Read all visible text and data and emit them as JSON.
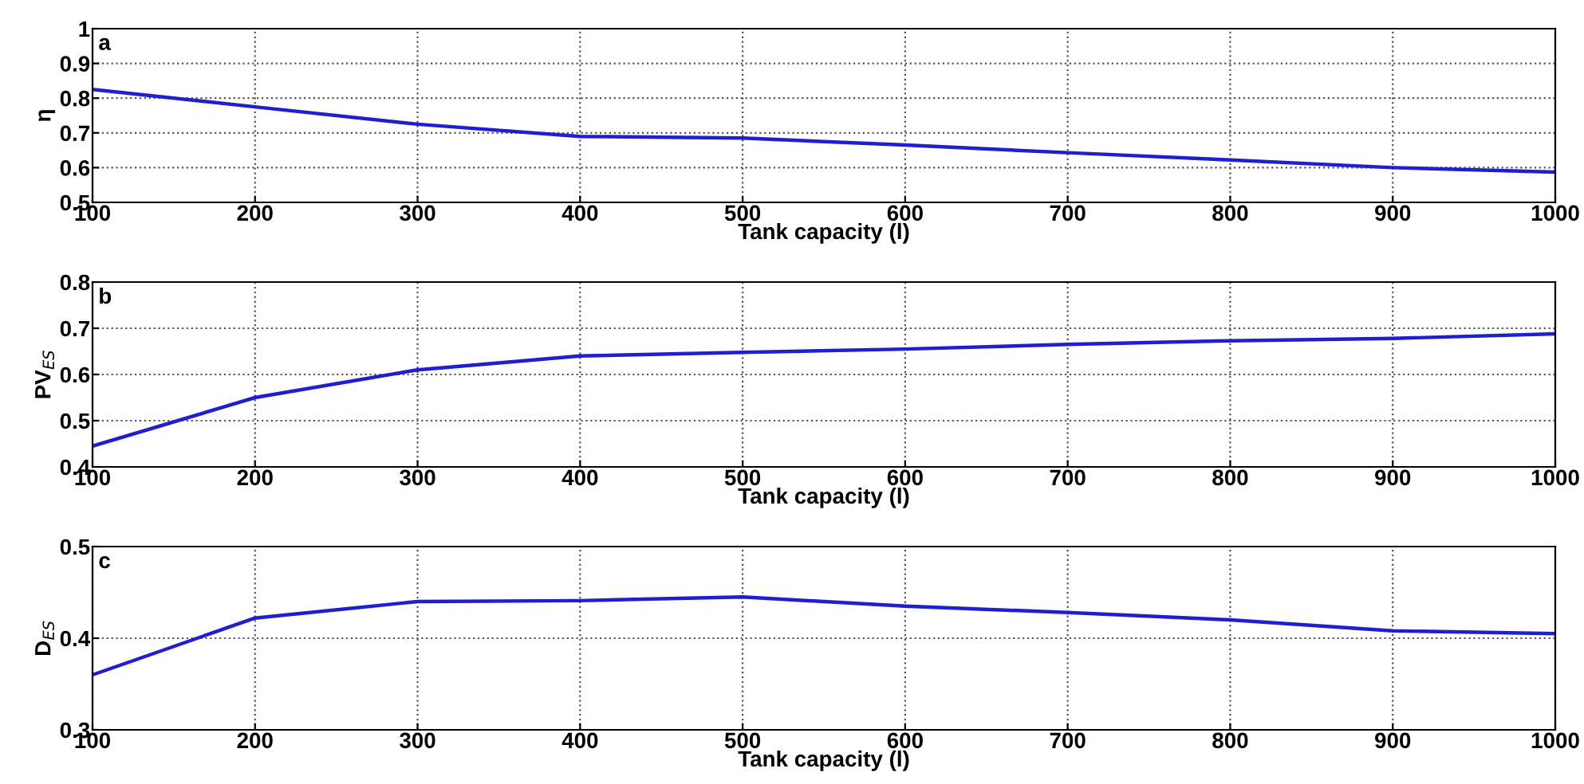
{
  "chart_data": [
    {
      "type": "line",
      "xlabel": "Tank capacity (l)",
      "ylabel": "η",
      "annotations": [
        "a"
      ],
      "x": [
        100,
        200,
        300,
        400,
        500,
        600,
        700,
        800,
        900,
        1000
      ],
      "series": [
        {
          "color": "#1f1fd0",
          "values": [
            0.825,
            0.775,
            0.725,
            0.69,
            0.685,
            0.665,
            0.643,
            0.622,
            0.6,
            0.587
          ]
        }
      ],
      "xlim": [
        100,
        1000
      ],
      "xticks": [
        100,
        200,
        300,
        400,
        500,
        600,
        700,
        800,
        900,
        1000
      ],
      "ylim": [
        0.5,
        1
      ],
      "yticks": [
        0.5,
        0.6,
        0.7,
        0.8,
        0.9,
        1
      ],
      "grid": true,
      "line_style": "solid",
      "marker": "none"
    },
    {
      "type": "line",
      "xlabel": "Tank capacity (l)",
      "ylabel": "PV$_{ES}$",
      "annotations": [
        "b"
      ],
      "x": [
        100,
        200,
        300,
        400,
        500,
        600,
        700,
        800,
        900,
        1000
      ],
      "series": [
        {
          "color": "#1f1fd0",
          "values": [
            0.445,
            0.55,
            0.61,
            0.64,
            0.648,
            0.655,
            0.665,
            0.673,
            0.678,
            0.688
          ]
        }
      ],
      "xlim": [
        100,
        1000
      ],
      "xticks": [
        100,
        200,
        300,
        400,
        500,
        600,
        700,
        800,
        900,
        1000
      ],
      "ylim": [
        0.4,
        0.8
      ],
      "yticks": [
        0.4,
        0.5,
        0.6,
        0.7,
        0.8
      ],
      "grid": true,
      "line_style": "solid",
      "marker": "none"
    },
    {
      "type": "line",
      "xlabel": "Tank capacity (l)",
      "ylabel": "D$_{ES}$",
      "annotations": [
        "c"
      ],
      "x": [
        100,
        200,
        300,
        400,
        500,
        600,
        700,
        800,
        900,
        1000
      ],
      "series": [
        {
          "color": "#1f1fd0",
          "values": [
            0.36,
            0.422,
            0.44,
            0.441,
            0.445,
            0.435,
            0.428,
            0.42,
            0.408,
            0.405
          ]
        }
      ],
      "xlim": [
        100,
        1000
      ],
      "xticks": [
        100,
        200,
        300,
        400,
        500,
        600,
        700,
        800,
        900,
        1000
      ],
      "ylim": [
        0.3,
        0.5
      ],
      "yticks": [
        0.3,
        0.4,
        0.5
      ],
      "grid": true,
      "line_style": "solid",
      "marker": "none"
    }
  ]
}
